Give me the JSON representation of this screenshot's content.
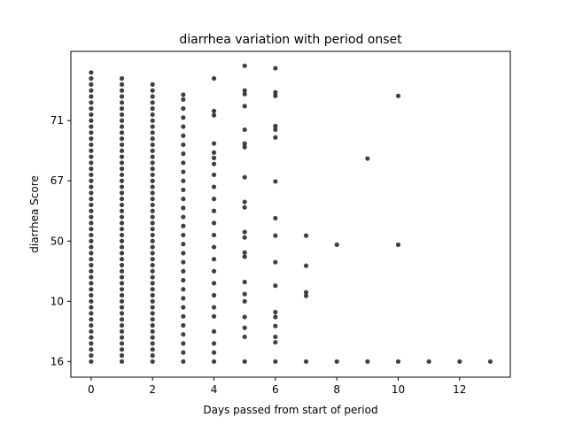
{
  "chart_data": {
    "type": "scatter",
    "title": "diarrhea variation with period onset",
    "xlabel": "Days passed from start of period",
    "ylabel": "diarrhea Score",
    "color": "#000000",
    "xlim": [
      -0.66,
      13.65
    ],
    "ylim": [
      -0.26,
      5.15
    ],
    "xticks": [
      0,
      2,
      4,
      6,
      8,
      10,
      12
    ],
    "yticks": [
      {
        "value": 0,
        "label": "16"
      },
      {
        "value": 1,
        "label": "10"
      },
      {
        "value": 2,
        "label": "50"
      },
      {
        "value": 3,
        "label": "67"
      },
      {
        "value": 4,
        "label": "71"
      }
    ],
    "x": [
      0,
      0,
      0,
      0,
      0,
      0,
      0,
      0,
      0,
      0,
      0,
      0,
      0,
      0,
      0,
      0,
      0,
      0,
      0,
      0,
      0,
      0,
      0,
      0,
      0,
      0,
      0,
      0,
      0,
      0,
      0,
      0,
      0,
      0,
      0,
      0,
      0,
      0,
      0,
      0,
      0,
      0,
      0,
      0,
      0,
      0,
      0,
      0,
      0,
      1,
      1,
      1,
      1,
      1,
      1,
      1,
      1,
      1,
      1,
      1,
      1,
      1,
      1,
      1,
      1,
      1,
      1,
      1,
      1,
      1,
      1,
      1,
      1,
      1,
      1,
      1,
      1,
      1,
      1,
      1,
      1,
      1,
      1,
      1,
      1,
      1,
      1,
      1,
      1,
      1,
      1,
      1,
      1,
      1,
      1,
      1,
      1,
      2,
      2,
      2,
      2,
      2,
      2,
      2,
      2,
      2,
      2,
      2,
      2,
      2,
      2,
      2,
      2,
      2,
      2,
      2,
      2,
      2,
      2,
      2,
      2,
      2,
      2,
      2,
      2,
      2,
      2,
      2,
      2,
      2,
      2,
      2,
      2,
      2,
      2,
      2,
      2,
      2,
      2,
      2,
      2,
      2,
      2,
      2,
      3,
      3,
      3,
      3,
      3,
      3,
      3,
      3,
      3,
      3,
      3,
      3,
      3,
      3,
      3,
      3,
      3,
      3,
      3,
      3,
      3,
      3,
      3,
      3,
      3,
      3,
      3,
      3,
      3,
      3,
      3,
      4,
      4,
      4,
      4,
      4,
      4,
      4,
      4,
      4,
      4,
      4,
      4,
      4,
      4,
      4,
      4,
      4,
      4,
      4,
      4,
      4,
      4,
      4,
      4,
      5,
      5,
      5,
      5,
      5,
      5,
      5,
      5,
      5,
      5,
      5,
      5,
      5,
      5,
      5,
      5,
      5,
      5,
      5,
      5,
      5,
      6,
      6,
      6,
      6,
      6,
      6,
      6,
      6,
      6,
      6,
      6,
      6,
      6,
      6,
      6,
      6,
      6,
      7,
      7,
      7,
      7,
      7,
      8,
      8,
      9,
      9,
      10,
      10,
      10,
      11,
      12,
      13
    ],
    "values": [
      0,
      0.1,
      0.2,
      0.3,
      0.4,
      0.5,
      0.6,
      0.7,
      0.8,
      0.9,
      1,
      1.1,
      1.2,
      1.3,
      1.4,
      1.5,
      1.6,
      1.7,
      1.8,
      1.9,
      2,
      2.1,
      2.2,
      2.3,
      2.4,
      2.5,
      2.6,
      2.7,
      2.8,
      2.9,
      3,
      3.1,
      3.2,
      3.3,
      3.4,
      3.5,
      3.6,
      3.7,
      3.8,
      3.9,
      4,
      4.1,
      4.2,
      4.3,
      4.4,
      4.5,
      4.6,
      4.7,
      4.8,
      0,
      0.1,
      0.2,
      0.3,
      0.4,
      0.5,
      0.6,
      0.7,
      0.8,
      0.9,
      1,
      1.1,
      1.2,
      1.3,
      1.4,
      1.5,
      1.6,
      1.7,
      1.8,
      1.9,
      2,
      2.1,
      2.2,
      2.3,
      2.4,
      2.5,
      2.6,
      2.7,
      2.8,
      2.9,
      3,
      3.1,
      3.2,
      3.3,
      3.4,
      3.5,
      3.6,
      3.7,
      3.8,
      3.9,
      4,
      4.1,
      4.2,
      4.3,
      4.4,
      4.5,
      4.6,
      4.7,
      0,
      0.1,
      0.2,
      0.3,
      0.4,
      0.5,
      0.6,
      0.7,
      0.8,
      0.9,
      1,
      1.1,
      1.2,
      1.3,
      1.4,
      1.5,
      1.6,
      1.7,
      1.8,
      1.9,
      2,
      2.1,
      2.2,
      2.3,
      2.4,
      2.5,
      2.6,
      2.7,
      2.8,
      2.9,
      3,
      3.1,
      3.2,
      3.3,
      3.4,
      3.5,
      3.6,
      3.7,
      3.8,
      3.9,
      4,
      4.1,
      4.2,
      4.3,
      4.4,
      4.5,
      4.6,
      0,
      0.15,
      0.3,
      0.45,
      0.6,
      0.75,
      0.9,
      1.05,
      1.2,
      1.35,
      1.5,
      1.65,
      1.8,
      1.95,
      2.1,
      2.25,
      2.4,
      2.55,
      2.7,
      2.85,
      3,
      3.15,
      3.3,
      3.45,
      3.6,
      3.75,
      3.9,
      4.05,
      4.2,
      4.35,
      4.43,
      0,
      0.15,
      0.3,
      0.5,
      0.75,
      0.9,
      1.1,
      1.3,
      1.5,
      1.7,
      1.9,
      2.1,
      2.3,
      2.5,
      2.7,
      2.9,
      3.1,
      3.28,
      3.38,
      3.47,
      3.62,
      4.09,
      4.16,
      4.7,
      0,
      0.41,
      0.56,
      0.74,
      1,
      1.12,
      1.32,
      1.74,
      1.81,
      2.06,
      2.15,
      2.56,
      2.65,
      3.06,
      3.56,
      3.62,
      3.85,
      4.24,
      4.44,
      4.5,
      4.91,
      0,
      0.32,
      0.41,
      0.59,
      0.74,
      0.82,
      1.26,
      1.65,
      2.09,
      2.38,
      2.99,
      3.72,
      3.85,
      3.91,
      4.41,
      4.47,
      4.87,
      0,
      1.09,
      1.15,
      1.59,
      2.09,
      0,
      1.94,
      0,
      3.37,
      0,
      1.94,
      4.41,
      0,
      0,
      0
    ]
  }
}
